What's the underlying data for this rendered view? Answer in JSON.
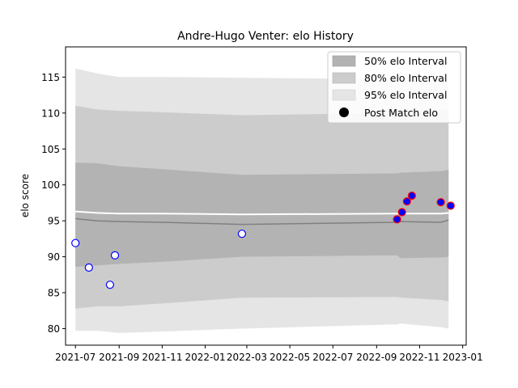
{
  "chart_data": {
    "type": "line",
    "title": "Andre-Hugo Venter: elo History",
    "xlabel": "",
    "ylabel": "elo score",
    "x_axis_type": "date",
    "xlim": [
      "2021-06-17",
      "2023-01-06"
    ],
    "ylim": [
      77.7,
      119.2
    ],
    "x_ticks": [
      "2021-07-01",
      "2021-09-01",
      "2021-11-01",
      "2022-01-01",
      "2022-03-01",
      "2022-05-01",
      "2022-07-01",
      "2022-09-01",
      "2022-11-01",
      "2023-01-01"
    ],
    "x_tick_labels": [
      "2021-07",
      "2021-09",
      "2021-11",
      "2022-01",
      "2022-03",
      "2022-05",
      "2022-07",
      "2022-09",
      "2022-11",
      "2023-01"
    ],
    "y_ticks": [
      80,
      85,
      90,
      95,
      100,
      105,
      110,
      115
    ],
    "y_tick_labels": [
      "80",
      "85",
      "90",
      "95",
      "100",
      "105",
      "110",
      "115"
    ],
    "grid": false,
    "legend_position": "top-right",
    "legend": [
      "50% elo Interval",
      "80% elo Interval",
      "95% elo Interval",
      "Post Match elo"
    ],
    "colors": {
      "band_50": "#b3b3b3",
      "band_80": "#cccccc",
      "band_95": "#e5e5e5",
      "mean_line": "#808080",
      "median_line": "#ffffff",
      "point_edge_early": "#0000ff",
      "point_edge_late": "#ff0000",
      "point_fill_early": "#ffffff",
      "point_fill_late": "#0000ff"
    },
    "band_dates": [
      "2021-07-01",
      "2021-08-01",
      "2021-09-01",
      "2021-11-01",
      "2022-02-22",
      "2022-09-30",
      "2022-10-05",
      "2022-12-01",
      "2022-12-12"
    ],
    "band_95_upper": [
      116.2,
      115.5,
      115.0,
      115.0,
      114.9,
      114.7,
      114.6,
      114.5,
      114.4
    ],
    "band_95_lower": [
      79.7,
      79.7,
      79.4,
      79.6,
      80.0,
      80.6,
      80.7,
      80.2,
      80.0
    ],
    "band_80_upper": [
      111.0,
      110.5,
      110.3,
      110.1,
      109.7,
      110.0,
      110.0,
      110.2,
      110.5
    ],
    "band_80_lower": [
      82.8,
      83.1,
      83.1,
      83.5,
      84.3,
      84.4,
      84.3,
      84.0,
      83.8
    ],
    "band_50_upper": [
      103.1,
      103.0,
      102.6,
      102.2,
      101.4,
      101.6,
      101.7,
      101.9,
      102.1
    ],
    "band_50_lower": [
      88.6,
      88.8,
      89.0,
      89.3,
      90.0,
      90.2,
      89.8,
      89.9,
      90.0
    ],
    "mean_values": [
      95.3,
      95.0,
      94.9,
      94.8,
      94.5,
      94.8,
      94.9,
      94.8,
      95.1
    ],
    "median_values": [
      96.3,
      96.1,
      96.0,
      96.0,
      95.9,
      96.0,
      96.0,
      96.0,
      96.1
    ],
    "post_match_points": [
      {
        "x": "2021-07-01",
        "y": 91.9,
        "group": "early"
      },
      {
        "x": "2021-07-20",
        "y": 88.5,
        "group": "early"
      },
      {
        "x": "2021-08-19",
        "y": 86.1,
        "group": "early"
      },
      {
        "x": "2021-08-26",
        "y": 90.2,
        "group": "early"
      },
      {
        "x": "2022-02-22",
        "y": 93.2,
        "group": "early"
      },
      {
        "x": "2022-09-30",
        "y": 95.2,
        "group": "late"
      },
      {
        "x": "2022-10-07",
        "y": 96.2,
        "group": "late"
      },
      {
        "x": "2022-10-14",
        "y": 97.7,
        "group": "late"
      },
      {
        "x": "2022-10-21",
        "y": 98.5,
        "group": "late"
      },
      {
        "x": "2022-12-01",
        "y": 97.6,
        "group": "late"
      },
      {
        "x": "2022-12-15",
        "y": 97.1,
        "group": "late"
      }
    ]
  }
}
